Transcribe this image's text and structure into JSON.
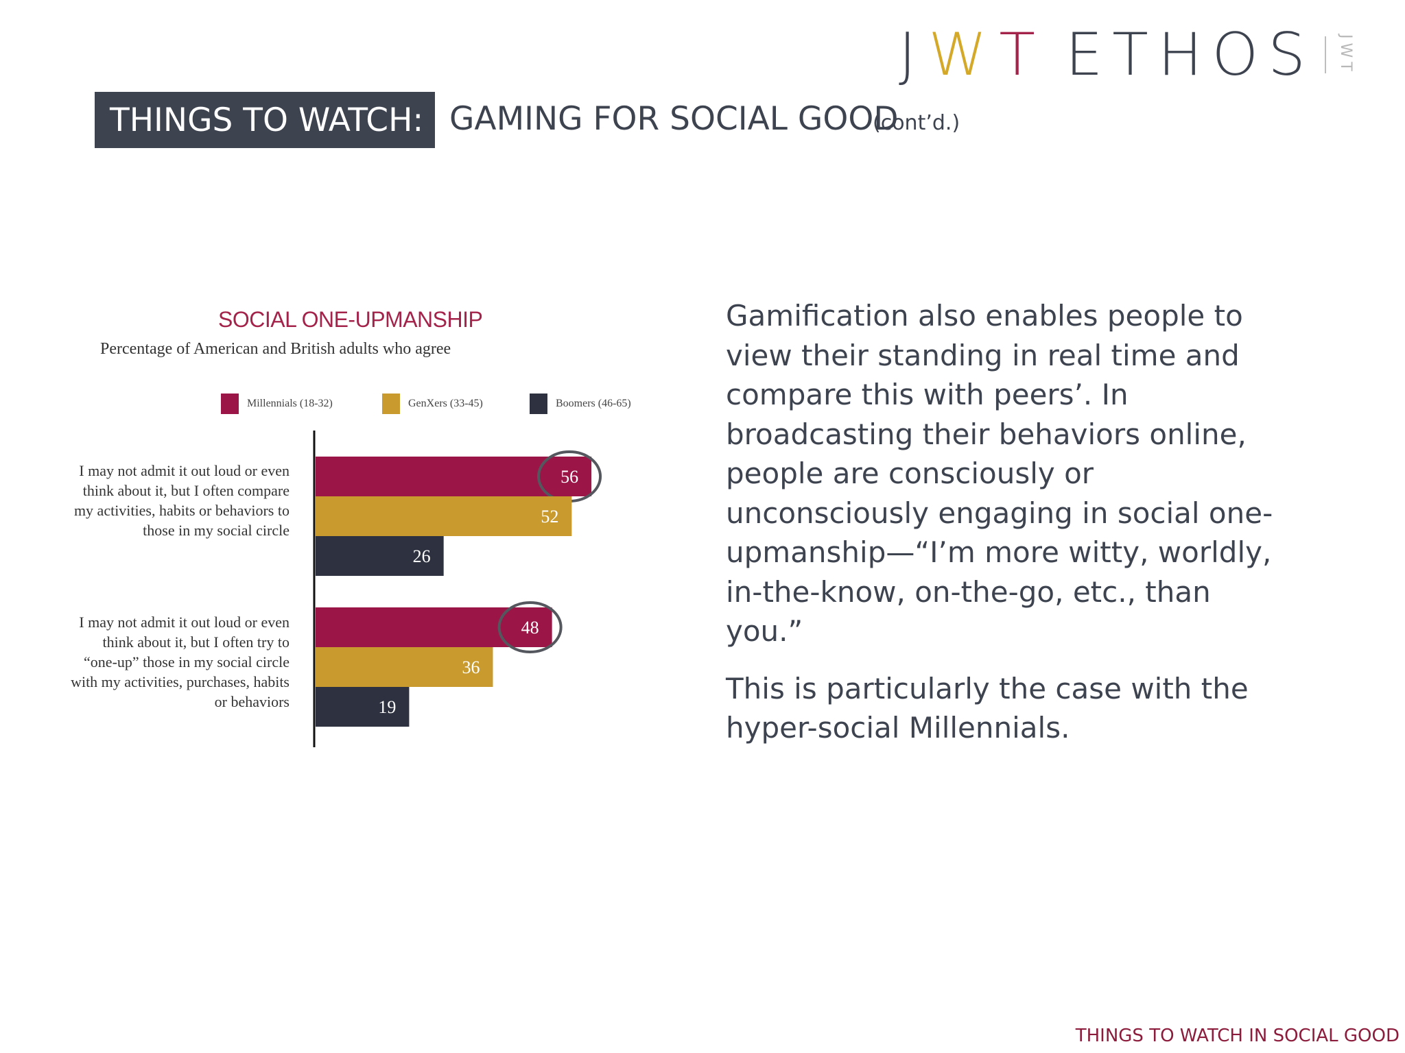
{
  "logo": {
    "j": "J",
    "w": "W",
    "t": "T",
    "ethos": "ETHOS",
    "vertical": "JWT",
    "colors": {
      "j": "#3e4350",
      "w": "#d4a92a",
      "t": "#a3234a",
      "ethos": "#3e4350"
    }
  },
  "header": {
    "label": "THINGS TO WATCH:",
    "title": "GAMING FOR SOCIAL GOOD",
    "suffix": "(cont’d.)"
  },
  "chart_data": {
    "type": "bar",
    "orientation": "horizontal",
    "title": "SOCIAL ONE-UPMANSHIP",
    "subtitle": "Percentage of American and British adults who agree",
    "categories": [
      "I may not admit it out loud or even think about it, but I often compare my activities, habits or behaviors to those in my social circle",
      "I may not admit it out loud or even think about it, but I often try to “one-up” those in my social circle with my activities, purchases, habits or behaviors"
    ],
    "series": [
      {
        "name": "Millennials (18-32)",
        "color": "#9b1646",
        "values": [
          56,
          48
        ]
      },
      {
        "name": "GenXers (33-45)",
        "color": "#c99a2e",
        "values": [
          52,
          36
        ]
      },
      {
        "name": "Boomers (46-65)",
        "color": "#2e3240",
        "values": [
          26,
          19
        ]
      }
    ],
    "highlighted": [
      [
        0,
        0
      ],
      [
        0,
        1
      ]
    ],
    "legend_position": "top",
    "grid": false
  },
  "body": {
    "paragraph1": "Gamification also enables people to view their standing in real time and compare this with peers’. In broadcasting their behaviors online, people are consciously or unconsciously engaging in social one-upmanship—“I’m more witty, worldly, in-the-know, on-the-go, etc., than you.”",
    "paragraph2": "This is particularly the case with the hyper-social Millennials."
  },
  "footer": "THINGS TO WATCH IN SOCIAL GOOD"
}
